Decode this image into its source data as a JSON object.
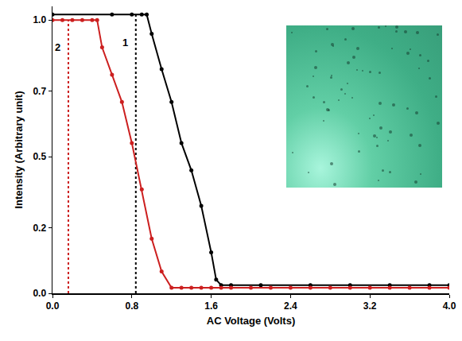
{
  "chart_data": {
    "type": "line",
    "xlabel": "AC Voltage (Volts)",
    "ylabel": "Intensity (Arbitrary unit)",
    "xlim": [
      0,
      4
    ],
    "xticks": [
      {
        "value": 0,
        "label": "0.0"
      },
      0.8,
      1.6,
      2.4,
      3.2,
      {
        "value": 4,
        "label": "4.0"
      }
    ],
    "ylim": [
      0,
      1.05
    ],
    "yticks": [
      {
        "value": 0,
        "label": "0.0"
      },
      {
        "value": 0.24,
        "label": "0.2"
      },
      0.5,
      {
        "value": 0.74,
        "label": "0.7"
      },
      {
        "value": 1,
        "label": "1.0"
      }
    ],
    "grid": false,
    "marker": "circle",
    "series": [
      {
        "name": "1",
        "color": "#000000",
        "line_style": "solid",
        "threshold": 0.84,
        "x": [
          0.0,
          0.6,
          0.8,
          0.9,
          0.95,
          1.0,
          1.1,
          1.2,
          1.3,
          1.4,
          1.5,
          1.6,
          1.65,
          1.7,
          1.8,
          2.1,
          2.6,
          3.0,
          3.4,
          3.8,
          4.0
        ],
        "values": [
          1.02,
          1.02,
          1.02,
          1.02,
          1.02,
          0.95,
          0.82,
          0.7,
          0.55,
          0.45,
          0.32,
          0.15,
          0.05,
          0.03,
          0.03,
          0.03,
          0.03,
          0.03,
          0.03,
          0.03,
          0.03
        ]
      },
      {
        "name": "2",
        "color": "#cc1f1f",
        "line_style": "solid",
        "threshold": 0.16,
        "x": [
          0.0,
          0.1,
          0.2,
          0.3,
          0.4,
          0.45,
          0.5,
          0.6,
          0.7,
          0.8,
          0.9,
          1.0,
          1.1,
          1.2,
          1.3,
          1.4,
          1.5,
          1.6,
          1.7,
          1.8,
          2.0,
          2.2,
          2.4,
          2.6,
          2.8,
          3.0,
          3.2,
          3.4,
          3.6,
          3.8,
          4.0
        ],
        "values": [
          1.0,
          1.0,
          1.0,
          1.0,
          1.0,
          1.0,
          0.9,
          0.8,
          0.7,
          0.55,
          0.38,
          0.2,
          0.08,
          0.02,
          0.02,
          0.02,
          0.02,
          0.02,
          0.02,
          0.02,
          0.02,
          0.02,
          0.02,
          0.02,
          0.02,
          0.02,
          0.02,
          0.02,
          0.02,
          0.02,
          0.02
        ]
      }
    ]
  }
}
